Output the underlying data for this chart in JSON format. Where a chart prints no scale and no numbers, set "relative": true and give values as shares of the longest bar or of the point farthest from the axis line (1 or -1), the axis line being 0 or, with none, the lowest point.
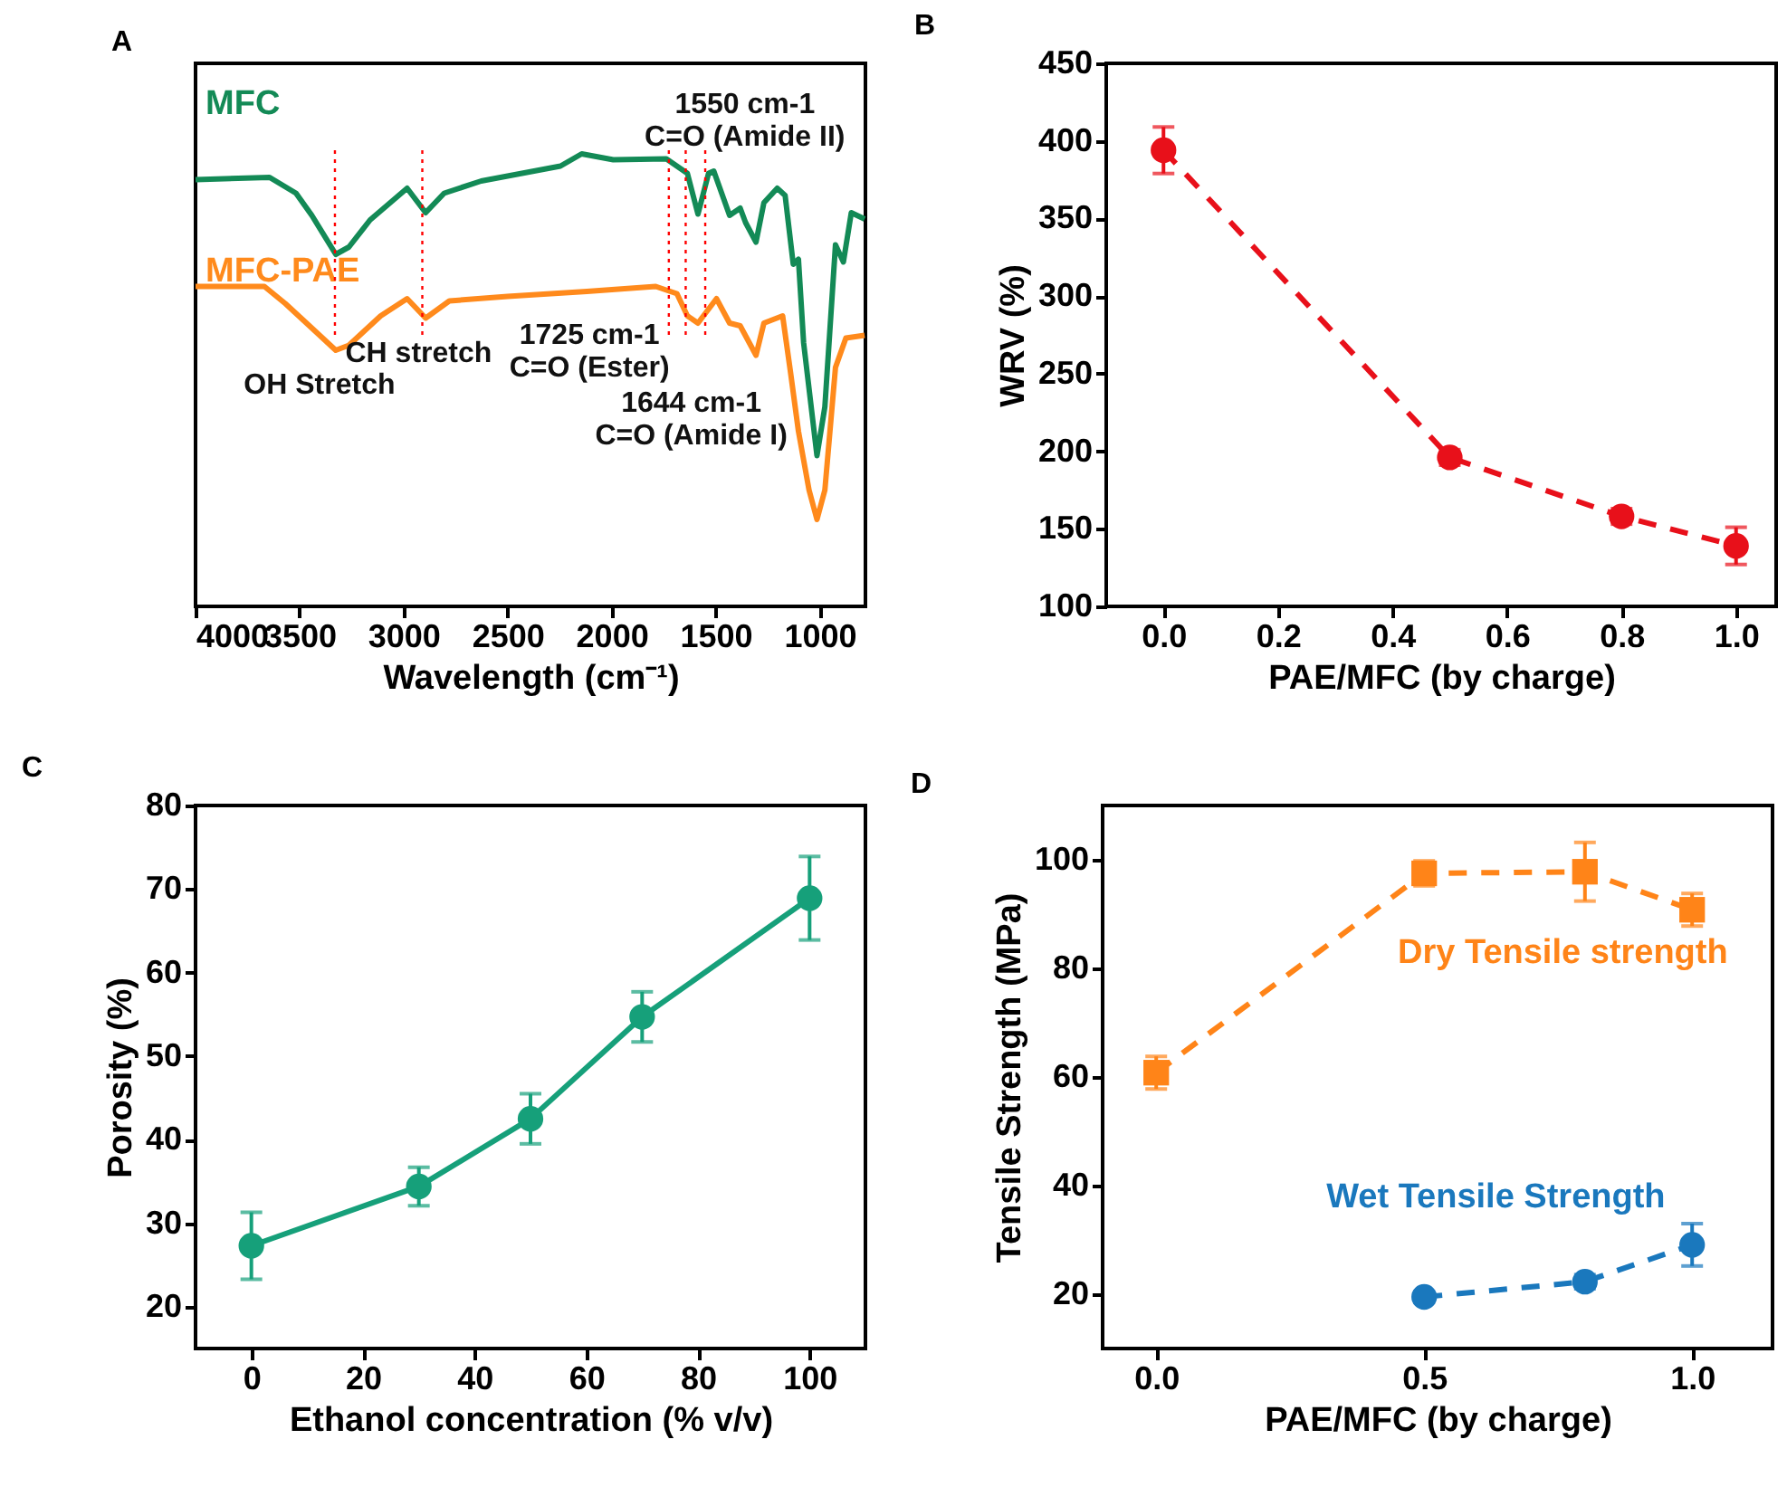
{
  "chart_data": [
    {
      "type": "line",
      "title": "A",
      "xlabel": "Wavelength (cm⁻¹)",
      "relative": true,
      "xlim": [
        4000,
        780
      ],
      "xticks": [
        4000,
        3500,
        3000,
        2500,
        2000,
        1500,
        1000
      ],
      "series": [
        {
          "name": "MFC",
          "color": "#138a56",
          "x": [
            4000,
            3644,
            3517,
            3441,
            3326,
            3263,
            3161,
            2983,
            2894,
            2805,
            2627,
            2246,
            2144,
            1992,
            1737,
            1636,
            1585,
            1534,
            1509,
            1433,
            1382,
            1356,
            1306,
            1268,
            1204,
            1166,
            1127,
            1102,
            1077,
            1013,
            975,
            924,
            886,
            848,
            784
          ],
          "values": [
            0.943,
            0.948,
            0.913,
            0.864,
            0.778,
            0.794,
            0.854,
            0.924,
            0.87,
            0.913,
            0.94,
            0.973,
            1,
            0.987,
            0.989,
            0.957,
            0.867,
            0.957,
            0.962,
            0.864,
            0.88,
            0.848,
            0.805,
            0.892,
            0.924,
            0.908,
            0.756,
            0.767,
            0.582,
            0.333,
            0.441,
            0.799,
            0.761,
            0.87,
            0.856
          ]
        },
        {
          "name": "MFC-PAE",
          "color": "#ff8a1c",
          "x": [
            4000,
            3669,
            3568,
            3415,
            3326,
            3263,
            3110,
            2983,
            2894,
            2780,
            2500,
            2119,
            1788,
            1686,
            1636,
            1585,
            1496,
            1433,
            1382,
            1306,
            1268,
            1178,
            1140,
            1102,
            1051,
            1013,
            975,
            924,
            874,
            784
          ],
          "values": [
            0.707,
            0.707,
            0.669,
            0.604,
            0.566,
            0.577,
            0.642,
            0.68,
            0.637,
            0.675,
            0.685,
            0.696,
            0.707,
            0.691,
            0.642,
            0.626,
            0.68,
            0.626,
            0.62,
            0.555,
            0.626,
            0.642,
            0.517,
            0.387,
            0.257,
            0.192,
            0.257,
            0.528,
            0.593,
            0.599
          ]
        }
      ],
      "ref_lines": [
        {
          "axis": "x",
          "value": 3330,
          "color": "#ff0000",
          "line_style": "dotted"
        },
        {
          "axis": "x",
          "value": 2910,
          "color": "#ff0000",
          "line_style": "dotted"
        },
        {
          "axis": "x",
          "value": 1725,
          "color": "#ff0000",
          "line_style": "dotted"
        },
        {
          "axis": "x",
          "value": 1644,
          "color": "#ff0000",
          "line_style": "dotted"
        },
        {
          "axis": "x",
          "value": 1550,
          "color": "#ff0000",
          "line_style": "dotted"
        }
      ],
      "annotations": [
        "OH Stretch",
        "CH stretch",
        "1725 cm-1\nC=O (Ester)",
        "1644 cm-1\nC=O (Amide I)",
        "1550 cm-1\nC=O (Amide II)"
      ]
    },
    {
      "type": "line",
      "title": "B",
      "xlabel": "PAE/MFC (by charge)",
      "ylabel": "WRV (%)",
      "marker": "circle",
      "line_style": "dashed",
      "x": [
        0,
        0.5,
        0.8,
        1.0
      ],
      "xlim": [
        -0.1,
        1.07
      ],
      "xticks": [
        {
          "value": 0,
          "label": "0.0"
        },
        {
          "value": 0.2,
          "label": "0.2"
        },
        {
          "value": 0.4,
          "label": "0.4"
        },
        {
          "value": 0.6,
          "label": "0.6"
        },
        {
          "value": 0.8,
          "label": "0.8"
        },
        {
          "value": 1,
          "label": "1.0"
        }
      ],
      "ylim": [
        100,
        450
      ],
      "yticks": [
        100,
        150,
        200,
        250,
        300,
        350,
        400,
        450
      ],
      "series": [
        {
          "color": "#e8101a",
          "values": [
            394,
            196,
            158,
            139
          ],
          "errors": [
            15,
            5,
            5,
            12
          ]
        }
      ]
    },
    {
      "type": "line",
      "title": "C",
      "xlabel": "Ethanol concentration (% v/v)",
      "ylabel": "Porosity (%)",
      "marker": "circle",
      "x": [
        0,
        30,
        50,
        70,
        100
      ],
      "xlim": [
        -10,
        110
      ],
      "xticks": [
        0,
        20,
        40,
        60,
        80,
        100
      ],
      "ylim": [
        15,
        80
      ],
      "yticks": [
        20,
        30,
        40,
        50,
        60,
        70,
        80
      ],
      "series": [
        {
          "color": "#16a07a",
          "values": [
            27.3,
            34.4,
            42.5,
            54.7,
            68.9
          ],
          "errors": [
            4,
            2.3,
            3,
            3,
            5
          ]
        }
      ]
    },
    {
      "type": "line",
      "title": "D",
      "xlabel": "PAE/MFC (by charge)",
      "ylabel": "Tensile Strength (MPa)",
      "line_style": "dashed",
      "xlim": [
        -0.1,
        1.15
      ],
      "xticks": [
        {
          "value": 0,
          "label": "0.0"
        },
        {
          "value": 0.5,
          "label": "0.5"
        },
        {
          "value": 1,
          "label": "1.0"
        }
      ],
      "ylim": [
        10,
        110
      ],
      "yticks": [
        20,
        40,
        60,
        80,
        100
      ],
      "series": [
        {
          "name": "Dry  Tensile strength",
          "color": "#ff8418",
          "marker": "square",
          "x": [
            0,
            0.5,
            0.8,
            1.0
          ],
          "values": [
            60.8,
            97.5,
            97.8,
            90.8
          ],
          "errors": [
            3,
            2.3,
            5.4,
            3
          ]
        },
        {
          "name": "Wet Tensile Strength",
          "color": "#1a78bd",
          "marker": "circle",
          "x": [
            0.5,
            0.8,
            1.0
          ],
          "values": [
            19.5,
            22.3,
            29.1
          ],
          "errors": [
            1,
            1.3,
            3.9
          ]
        }
      ]
    }
  ]
}
